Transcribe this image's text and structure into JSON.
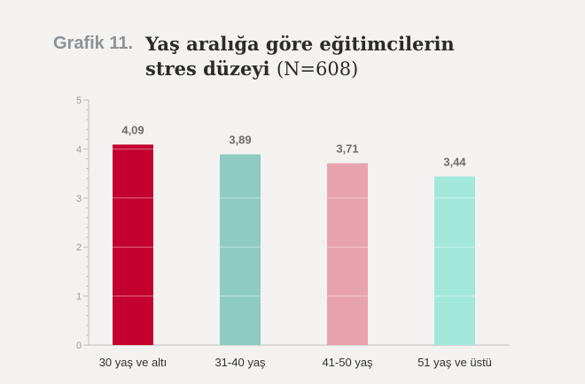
{
  "title": {
    "prefix": "Grafik 11.",
    "line1": "Yaş aralığa göre eğitimcilerin",
    "line2": "stres düzeyi",
    "sample": "(N=608)"
  },
  "chart_data": {
    "type": "bar",
    "categories": [
      "30 yaş ve altı",
      "31-40 yaş",
      "41-50 yaş",
      "51 yaş ve üstü"
    ],
    "values": [
      4.09,
      3.89,
      3.71,
      3.44
    ],
    "value_labels": [
      "4,09",
      "3,89",
      "3,71",
      "3,44"
    ],
    "colors": [
      "#c4002f",
      "#8ecbc0",
      "#e8a2ad",
      "#a2e8da"
    ],
    "ylim": [
      0,
      5
    ],
    "yticks": [
      "0",
      "1",
      "2",
      "3",
      "4",
      "5"
    ],
    "xlabel": "",
    "ylabel": "",
    "grid": false,
    "axis_color": "#bfbfbf"
  }
}
